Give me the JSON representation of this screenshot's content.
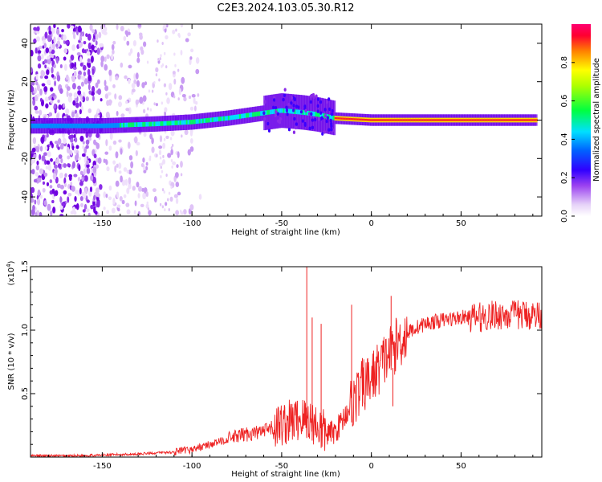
{
  "figure": {
    "title": "C2E3.2024.103.05.30.R12"
  },
  "chart_data": [
    {
      "type": "heatmap",
      "xlabel": "Height of straight line (km)",
      "ylabel": "Frequency (Hz)",
      "xlim": [
        -190,
        95
      ],
      "ylim": [
        -50,
        50
      ],
      "x_ticks": [
        -150,
        -100,
        -50,
        0,
        50
      ],
      "y_ticks": [
        -40,
        -20,
        0,
        20,
        40
      ],
      "colorbar": {
        "label": "Normalized spectral amplitude",
        "range": [
          0,
          1
        ],
        "ticks": [
          "0.0",
          "0.2",
          "0.4",
          "0.6",
          "0.8"
        ],
        "colormap": [
          "#ffffff",
          "#e0c8f7",
          "#7b00e0",
          "#0000ff",
          "#00c8ff",
          "#00ff60",
          "#ffff00",
          "#ff8000",
          "#ff0040",
          "#ff00a0"
        ]
      },
      "ridge": [
        {
          "x": -190,
          "y": -3
        },
        {
          "x": -150,
          "y": -3
        },
        {
          "x": -120,
          "y": -2
        },
        {
          "x": -100,
          "y": -1
        },
        {
          "x": -80,
          "y": 1
        },
        {
          "x": -65,
          "y": 3
        },
        {
          "x": -50,
          "y": 5
        },
        {
          "x": -38,
          "y": 4
        },
        {
          "x": -30,
          "y": 3
        },
        {
          "x": -20,
          "y": 1
        },
        {
          "x": 0,
          "y": 0
        },
        {
          "x": 50,
          "y": 0
        },
        {
          "x": 90,
          "y": 0
        }
      ]
    },
    {
      "type": "line",
      "xlabel": "Height of straight line (km)",
      "ylabel": "SNR (10 * v/v)",
      "y_scale_label": "(x10",
      "y_scale_exponent": "4",
      "y_scale_close": ")",
      "xlim": [
        -190,
        95
      ],
      "ylim": [
        0,
        1.5
      ],
      "x_ticks": [
        -150,
        -100,
        -50,
        0,
        50
      ],
      "y_ticks": [
        "0.5",
        "1.0",
        "1.5"
      ],
      "color": "#ee2222",
      "series": [
        {
          "x": [
            -190,
            -170,
            -150,
            -130,
            -110,
            -100,
            -90,
            -80,
            -70,
            -60,
            -50,
            -45,
            -40,
            -35,
            -30,
            -25,
            -20,
            -15,
            -10,
            -5,
            0,
            5,
            10,
            15,
            20,
            25,
            30,
            40,
            50,
            60,
            70,
            80,
            90,
            95
          ],
          "y": [
            0.01,
            0.01,
            0.015,
            0.025,
            0.04,
            0.06,
            0.1,
            0.14,
            0.18,
            0.2,
            0.26,
            0.28,
            0.3,
            0.3,
            0.25,
            0.18,
            0.2,
            0.32,
            0.45,
            0.55,
            0.62,
            0.72,
            0.82,
            0.9,
            0.98,
            1.02,
            1.05,
            1.08,
            1.1,
            1.1,
            1.12,
            1.12,
            1.12,
            1.12
          ]
        }
      ],
      "spikes": [
        {
          "x": -36,
          "y": 1.55
        },
        {
          "x": -33,
          "y": 1.1
        },
        {
          "x": -28,
          "y": 1.05
        },
        {
          "x": -11,
          "y": 1.2
        },
        {
          "x": -5,
          "y": 0.78
        },
        {
          "x": 11,
          "y": 1.27
        },
        {
          "x": 12,
          "y": 0.4
        }
      ]
    }
  ]
}
